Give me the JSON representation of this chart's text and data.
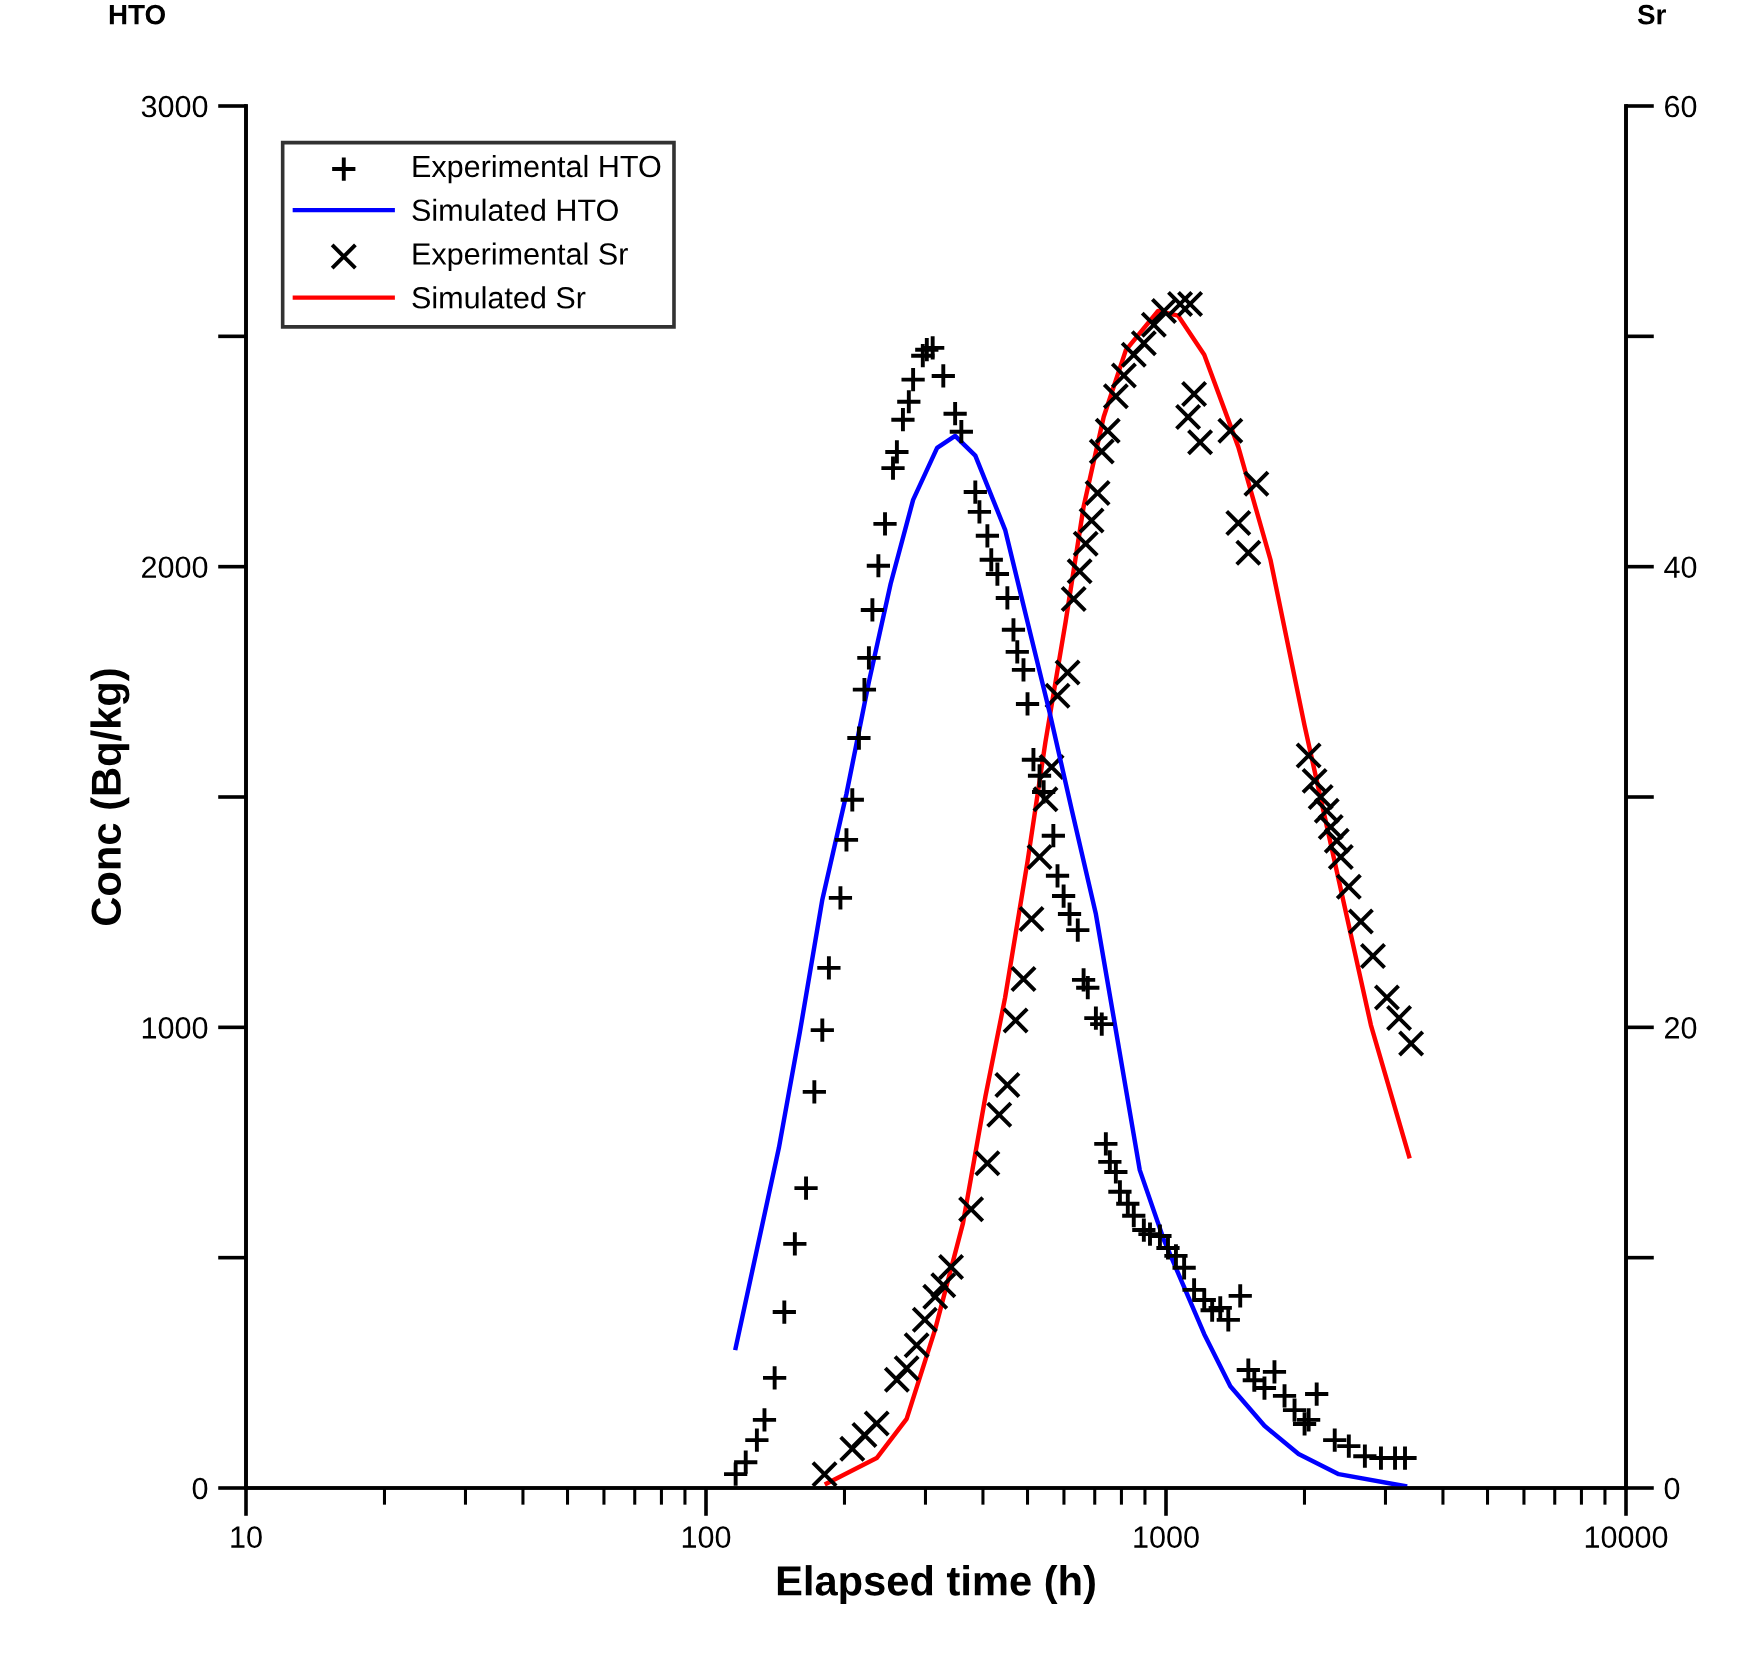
{
  "chart_data": {
    "type": "scatter",
    "xlabel": "Elapsed time (h)",
    "ylabel": "Conc (Bq/kg)",
    "y2label": "Sr",
    "annotations": [
      "HTO"
    ],
    "log": "x",
    "xlim": [
      10,
      10000
    ],
    "xticks": [
      10,
      100,
      1000,
      10000
    ],
    "ylim": [
      0,
      3000
    ],
    "yticks": [
      0,
      {
        "value": 500,
        "label": null
      },
      1000,
      {
        "value": 1500,
        "label": null
      },
      2000,
      {
        "value": 2500,
        "label": null
      },
      3000
    ],
    "y2lim": [
      0,
      60
    ],
    "y2ticks": [
      0,
      {
        "value": 10,
        "label": null
      },
      20,
      {
        "value": 30,
        "label": null
      },
      40,
      {
        "value": 50,
        "label": null
      },
      60
    ],
    "grid": false,
    "legend": "top left",
    "series": [
      {
        "name": "Experimental HTO",
        "marker": "plus",
        "color": "#000000",
        "x": [
          116,
          122,
          129,
          134,
          141,
          148,
          156,
          165,
          172,
          179,
          185,
          196,
          202,
          208,
          215,
          221,
          226,
          230,
          237,
          245,
          255,
          260,
          268,
          276,
          282,
          296,
          302,
          311,
          328,
          348,
          359,
          385,
          393,
          409,
          417,
          430,
          452,
          466,
          475,
          490,
          500,
          515,
          531,
          542,
          569,
          581,
          599,
          617,
          643,
          662,
          676,
          704,
          725,
          740,
          755,
          778,
          794,
          826,
          851,
          895,
          923,
          970,
          1010,
          1051,
          1095,
          1151,
          1211,
          1260,
          1312,
          1366,
          1450,
          1510,
          1556,
          1637,
          1721,
          1810,
          1903,
          2001,
          2042,
          2126,
          2327,
          2497,
          2706,
          2933,
          3147,
          3308
        ],
        "values": [
          30,
          56,
          104,
          148,
          239,
          382,
          530,
          651,
          860,
          994,
          1129,
          1281,
          1407,
          1494,
          1628,
          1733,
          1802,
          1906,
          2002,
          2093,
          2214,
          2249,
          2319,
          2358,
          2406,
          2458,
          2471,
          2475,
          2414,
          2332,
          2293,
          2162,
          2119,
          2067,
          2015,
          1984,
          1932,
          1863,
          1815,
          1776,
          1702,
          1581,
          1546,
          1511,
          1416,
          1329,
          1285,
          1246,
          1211,
          1103,
          1086,
          1020,
          1007,
          747,
          708,
          686,
          643,
          617,
          591,
          560,
          551,
          547,
          521,
          504,
          478,
          430,
          408,
          386,
          391,
          365,
          417,
          256,
          234,
          217,
          252,
          200,
          169,
          139,
          148,
          204,
          104,
          91,
          69,
          65,
          65,
          65
        ]
      },
      {
        "name": "Simulated HTO",
        "type": "line",
        "line_style": "solid",
        "color": "#0000ff",
        "x": [
          116,
          144,
          160,
          179,
          202,
          226,
          252,
          282,
          318,
          348,
          385,
          447,
          500,
          558,
          624,
          704,
          786,
          877,
          990,
          1211,
          1380,
          1637,
          1942,
          2374,
          3308
        ],
        "values": [
          304,
          738,
          990,
          1277,
          1507,
          1750,
          1963,
          2145,
          2258,
          2284,
          2241,
          2080,
          1880,
          1685,
          1472,
          1246,
          968,
          690,
          538,
          334,
          221,
          135,
          74,
          30,
          4
        ]
      },
      {
        "name": "Experimental Sr",
        "marker": "cross",
        "axis": "y2",
        "color": "#000000",
        "x": [
          181,
          208,
          221,
          235,
          260,
          273,
          287,
          299,
          315,
          328,
          341,
          377,
          409,
          434,
          452,
          471,
          490,
          510,
          531,
          547,
          564,
          581,
          611,
          630,
          649,
          669,
          689,
          710,
          725,
          747,
          778,
          810,
          851,
          895,
          941,
          990,
          1041,
          1073,
          1128,
          1117,
          1151,
          1186,
          1380,
          1436,
          1510,
          1572,
          2042,
          2104,
          2169,
          2236,
          2281,
          2351,
          2399,
          2497,
          2652,
          2818,
          3022,
          3211,
          3411
        ],
        "values": [
          0.6,
          1.7,
          2.3,
          2.8,
          4.7,
          5.2,
          6.2,
          7.3,
          8.3,
          8.8,
          9.6,
          12.1,
          14.1,
          16.2,
          17.5,
          20.3,
          22.1,
          24.7,
          27.4,
          29.9,
          31.3,
          34.4,
          35.4,
          38.6,
          39.8,
          41.0,
          42.0,
          43.2,
          45.0,
          45.9,
          47.4,
          48.3,
          49.2,
          49.7,
          50.5,
          51.1,
          null,
          51.4,
          51.4,
          46.5,
          47.5,
          45.4,
          45.9,
          41.9,
          40.6,
          43.6,
          31.8,
          30.7,
          30.0,
          29.4,
          28.7,
          28.1,
          27.4,
          26.1,
          24.6,
          23.1,
          21.3,
          20.4,
          19.3
        ]
      },
      {
        "name": "Simulated Sr",
        "type": "line",
        "line_style": "solid",
        "axis": "y2",
        "color": "#ff0000",
        "x": [
          183,
          235,
          273,
          315,
          362,
          405,
          447,
          500,
          547,
          605,
          662,
          732,
          818,
          961,
          1062,
          1211,
          1436,
          1687,
          2001,
          2374,
          2789,
          3376
        ],
        "values": [
          0.2,
          1.3,
          3.0,
          6.9,
          11.5,
          17.0,
          21.3,
          27.2,
          32.4,
          37.6,
          42.6,
          46.5,
          49.4,
          51.1,
          50.9,
          49.2,
          45.2,
          40.3,
          33.1,
          26.4,
          20.1,
          14.4
        ]
      }
    ]
  }
}
